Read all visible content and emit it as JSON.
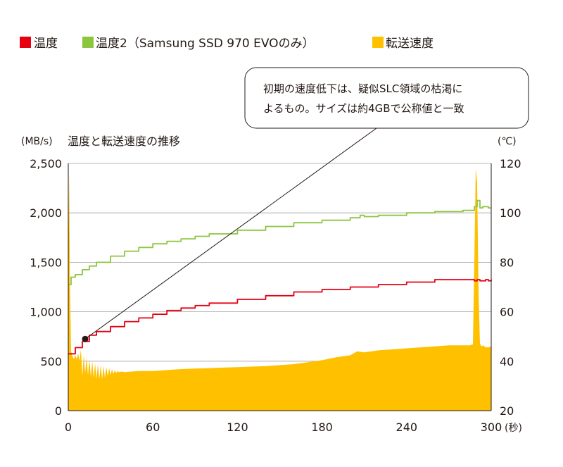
{
  "chart_data": {
    "type": "area",
    "title": "温度と転送速度の推移",
    "y_unit_left": "(MB/s)",
    "y_unit_right": "(℃)",
    "x_unit": "(秒)",
    "xlim": [
      0,
      300
    ],
    "ylim_left": [
      0,
      2500
    ],
    "ylim_right": [
      20,
      120
    ],
    "x_ticks": [
      "0",
      "60",
      "120",
      "180",
      "240",
      "300"
    ],
    "y_ticks_left": [
      "0",
      "500",
      "1,000",
      "1,500",
      "2,000",
      "2,500"
    ],
    "y_ticks_right": [
      "20",
      "40",
      "60",
      "80",
      "100",
      "120"
    ],
    "x_tick_values": [
      0,
      60,
      120,
      180,
      240,
      300
    ],
    "y_tick_values_left": [
      0,
      500,
      1000,
      1500,
      2000,
      2500
    ],
    "y_tick_values_right": [
      20,
      40,
      60,
      80,
      100,
      120
    ],
    "grid": "horizontal",
    "legend_position": "top",
    "legend": [
      {
        "label": "温度",
        "color": "#e60012"
      },
      {
        "label": "温度2（Samsung SSD 970 EVOのみ）",
        "color": "#8cc63f"
      },
      {
        "label": "転送速度",
        "color": "#ffc000"
      }
    ],
    "annotation": {
      "lines": [
        "初期の速度低下は、疑似SLC領域の枯渇に",
        "よるもの。サイズは約4GBで公称値と一致"
      ],
      "point": {
        "x": 12,
        "y": 49
      }
    },
    "series": [
      {
        "name": "転送速度",
        "axis": "left",
        "color": "#ffc000",
        "x": [
          0,
          0.6,
          1.2,
          2,
          3,
          4,
          5,
          6,
          7,
          8,
          9,
          10,
          11,
          12,
          13,
          14,
          15,
          16,
          17,
          18,
          19,
          20,
          21,
          22,
          23,
          24,
          25,
          26,
          27,
          28,
          29,
          30,
          31,
          32,
          33,
          34,
          35,
          36,
          38,
          40,
          45,
          50,
          60,
          70,
          80,
          90,
          100,
          110,
          120,
          130,
          140,
          150,
          160,
          170,
          180,
          190,
          200,
          205,
          210,
          220,
          230,
          240,
          250,
          260,
          270,
          280,
          285,
          287,
          288,
          289,
          290,
          291,
          292,
          293,
          294,
          296,
          298,
          300
        ],
        "values": [
          1350,
          2430,
          1300,
          600,
          550,
          520,
          560,
          520,
          580,
          500,
          620,
          350,
          560,
          380,
          540,
          360,
          520,
          340,
          500,
          330,
          480,
          320,
          470,
          320,
          460,
          320,
          450,
          330,
          440,
          350,
          430,
          360,
          420,
          370,
          410,
          380,
          400,
          390,
          395,
          390,
          395,
          400,
          400,
          410,
          420,
          425,
          430,
          435,
          440,
          445,
          450,
          460,
          470,
          490,
          510,
          540,
          560,
          600,
          590,
          610,
          620,
          630,
          640,
          650,
          660,
          660,
          660,
          670,
          1500,
          2450,
          2300,
          1200,
          680,
          650,
          660,
          640,
          640,
          650
        ]
      },
      {
        "name": "温度",
        "axis": "right",
        "color": "#e60012",
        "x": [
          0,
          5,
          10,
          15,
          20,
          30,
          40,
          50,
          60,
          70,
          80,
          90,
          100,
          120,
          140,
          160,
          180,
          200,
          220,
          240,
          260,
          280,
          283,
          285,
          288,
          290,
          292,
          294,
          296,
          298,
          300
        ],
        "values": [
          43,
          45.5,
          48,
          50.5,
          52,
          54,
          56,
          57.5,
          59,
          60.5,
          61.5,
          62.5,
          63.5,
          65,
          66.5,
          68,
          69,
          70,
          71,
          72,
          73,
          73,
          73,
          73,
          72.5,
          73,
          72.5,
          72.5,
          73,
          72.5,
          73
        ]
      },
      {
        "name": "温度2（Samsung SSD 970 EVOのみ）",
        "axis": "right",
        "color": "#8cc63f",
        "x": [
          0,
          2,
          5,
          10,
          15,
          20,
          30,
          40,
          50,
          60,
          70,
          80,
          90,
          100,
          120,
          140,
          160,
          180,
          200,
          206,
          207,
          210,
          220,
          240,
          260,
          280,
          285,
          288,
          290,
          292,
          294,
          296,
          298,
          300
        ],
        "values": [
          71,
          74,
          75,
          77,
          78.5,
          80,
          82.5,
          84.5,
          86,
          87.5,
          88.5,
          89.5,
          90.5,
          91.5,
          93,
          94.5,
          96,
          97,
          98,
          98,
          99,
          98.5,
          99,
          100,
          100.5,
          101,
          101,
          102.5,
          105,
          102,
          102.5,
          102.5,
          102,
          102
        ]
      }
    ]
  }
}
